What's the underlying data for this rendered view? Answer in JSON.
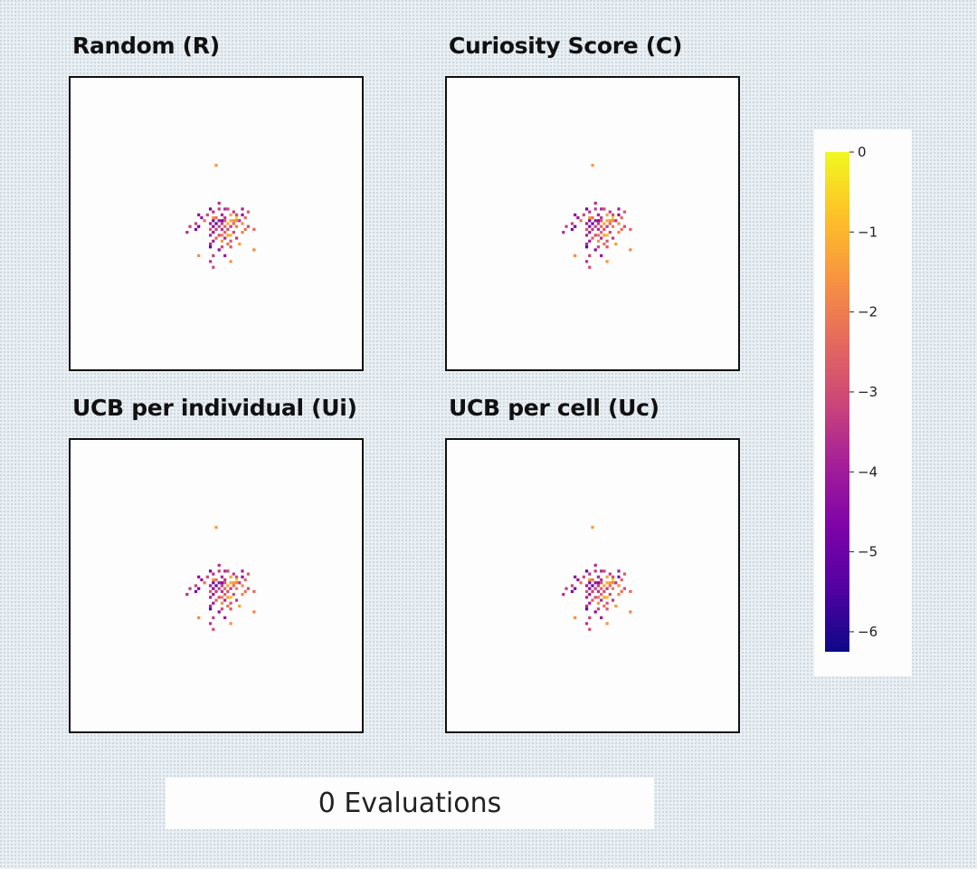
{
  "footer": {
    "text": "0 Evaluations"
  },
  "chart_data": {
    "type": "heatmap",
    "colormap": "plasma",
    "colorbar": {
      "ticks": [
        0,
        -1,
        -2,
        -3,
        -4,
        -5,
        -6
      ],
      "range": [
        -6.25,
        0
      ]
    },
    "panels": [
      {
        "title": "Random (R)"
      },
      {
        "title": "Curiosity Score (C)"
      },
      {
        "title": "UCB per individual (Ui)"
      },
      {
        "title": "UCB per cell (Uc)"
      }
    ],
    "grid_size": [
      100,
      100
    ],
    "cells": [
      {
        "x": 0,
        "y": 20,
        "v": -1.5
      },
      {
        "x": 1,
        "y": 7,
        "v": -3.6
      },
      {
        "x": 1,
        "y": 5,
        "v": -3.3
      },
      {
        "x": -2,
        "y": 5,
        "v": -4.9
      },
      {
        "x": -1,
        "y": 4,
        "v": -3.5
      },
      {
        "x": 3,
        "y": 5,
        "v": -3.7
      },
      {
        "x": 4,
        "y": 5,
        "v": -3.2
      },
      {
        "x": 9,
        "y": 5,
        "v": -3.9
      },
      {
        "x": 6,
        "y": 4,
        "v": -3.4
      },
      {
        "x": 11,
        "y": 4,
        "v": -2.7
      },
      {
        "x": -6,
        "y": 3,
        "v": -4.3
      },
      {
        "x": -3,
        "y": 3,
        "v": -3.1
      },
      {
        "x": 2,
        "y": 3,
        "v": -3.8
      },
      {
        "x": 5,
        "y": 3,
        "v": -1.3
      },
      {
        "x": 7,
        "y": 3,
        "v": -3.0
      },
      {
        "x": 9,
        "y": 3,
        "v": -4.3
      },
      {
        "x": -5,
        "y": 2,
        "v": -4.2
      },
      {
        "x": -1,
        "y": 2,
        "v": -1.6
      },
      {
        "x": 0,
        "y": 2,
        "v": -2.3
      },
      {
        "x": 3,
        "y": 2,
        "v": -3.4
      },
      {
        "x": 7,
        "y": 2,
        "v": -0.6
      },
      {
        "x": 10,
        "y": 2,
        "v": -2.4
      },
      {
        "x": -4,
        "y": 1,
        "v": -2.2
      },
      {
        "x": -1,
        "y": 1,
        "v": -4.8
      },
      {
        "x": 1,
        "y": 1,
        "v": -4.3
      },
      {
        "x": 2,
        "y": 1,
        "v": -4.5
      },
      {
        "x": 3,
        "y": 1,
        "v": -2.9
      },
      {
        "x": 5,
        "y": 1,
        "v": -1.2
      },
      {
        "x": 6,
        "y": 1,
        "v": -1.5
      },
      {
        "x": 7,
        "y": 1,
        "v": -1.8
      },
      {
        "x": 8,
        "y": 1,
        "v": -3.5
      },
      {
        "x": -7,
        "y": 0,
        "v": -3.2
      },
      {
        "x": -2,
        "y": 0,
        "v": -3.9
      },
      {
        "x": 0,
        "y": 0,
        "v": -5.1
      },
      {
        "x": 2,
        "y": 0,
        "v": -3.3
      },
      {
        "x": 4,
        "y": 0,
        "v": -1.2
      },
      {
        "x": 6,
        "y": 0,
        "v": -2.3
      },
      {
        "x": 9,
        "y": 0,
        "v": -1.7
      },
      {
        "x": -9,
        "y": -1,
        "v": -3.3
      },
      {
        "x": -6,
        "y": -1,
        "v": -4.9
      },
      {
        "x": -1,
        "y": -1,
        "v": -4.5
      },
      {
        "x": 1,
        "y": -1,
        "v": -3.2
      },
      {
        "x": 3,
        "y": -1,
        "v": -2.4
      },
      {
        "x": 5,
        "y": -1,
        "v": -3.4
      },
      {
        "x": 7,
        "y": -1,
        "v": -2.0
      },
      {
        "x": 11,
        "y": -1,
        "v": -3.0
      },
      {
        "x": -7,
        "y": -2,
        "v": -4.6
      },
      {
        "x": -2,
        "y": -2,
        "v": -2.8
      },
      {
        "x": 0,
        "y": -2,
        "v": -3.3
      },
      {
        "x": 2,
        "y": -2,
        "v": -3.6
      },
      {
        "x": 4,
        "y": -2,
        "v": -2.9
      },
      {
        "x": 10,
        "y": -2,
        "v": -2.2
      },
      {
        "x": 13,
        "y": -2,
        "v": -2.4
      },
      {
        "x": -10,
        "y": -3,
        "v": -3.6
      },
      {
        "x": -1,
        "y": -3,
        "v": -4.2
      },
      {
        "x": 3,
        "y": -3,
        "v": -2.6
      },
      {
        "x": 6,
        "y": -3,
        "v": -3.1
      },
      {
        "x": 9,
        "y": -3,
        "v": -1.9
      },
      {
        "x": -2,
        "y": -4,
        "v": -3.8
      },
      {
        "x": 1,
        "y": -4,
        "v": -3.0
      },
      {
        "x": 2,
        "y": -4,
        "v": -2.1
      },
      {
        "x": 4,
        "y": -4,
        "v": -1.3
      },
      {
        "x": 5,
        "y": -4,
        "v": -0.9
      },
      {
        "x": 0,
        "y": -5,
        "v": -2.5
      },
      {
        "x": 3,
        "y": -5,
        "v": -3.7
      },
      {
        "x": 7,
        "y": -5,
        "v": -3.4
      },
      {
        "x": -1,
        "y": -6,
        "v": -4.0
      },
      {
        "x": 2,
        "y": -6,
        "v": -1.6
      },
      {
        "x": 5,
        "y": -6,
        "v": -2.8
      },
      {
        "x": -2,
        "y": -7,
        "v": -3.6
      },
      {
        "x": 4,
        "y": -7,
        "v": -2.2
      },
      {
        "x": 8,
        "y": -7,
        "v": -1.4
      },
      {
        "x": -2,
        "y": -8,
        "v": -5.3
      },
      {
        "x": 2,
        "y": -8,
        "v": -3.1
      },
      {
        "x": 5,
        "y": -8,
        "v": -2.7
      },
      {
        "x": 1,
        "y": -9,
        "v": -4.4
      },
      {
        "x": 13,
        "y": -9,
        "v": -1.8
      },
      {
        "x": -6,
        "y": -11,
        "v": -1.7
      },
      {
        "x": -1,
        "y": -11,
        "v": -3.2
      },
      {
        "x": 3,
        "y": -11,
        "v": -4.1
      },
      {
        "x": -2,
        "y": -13,
        "v": -3.5
      },
      {
        "x": 5,
        "y": -13,
        "v": -1.6
      },
      {
        "x": -1,
        "y": -15,
        "v": -3.0
      }
    ]
  }
}
